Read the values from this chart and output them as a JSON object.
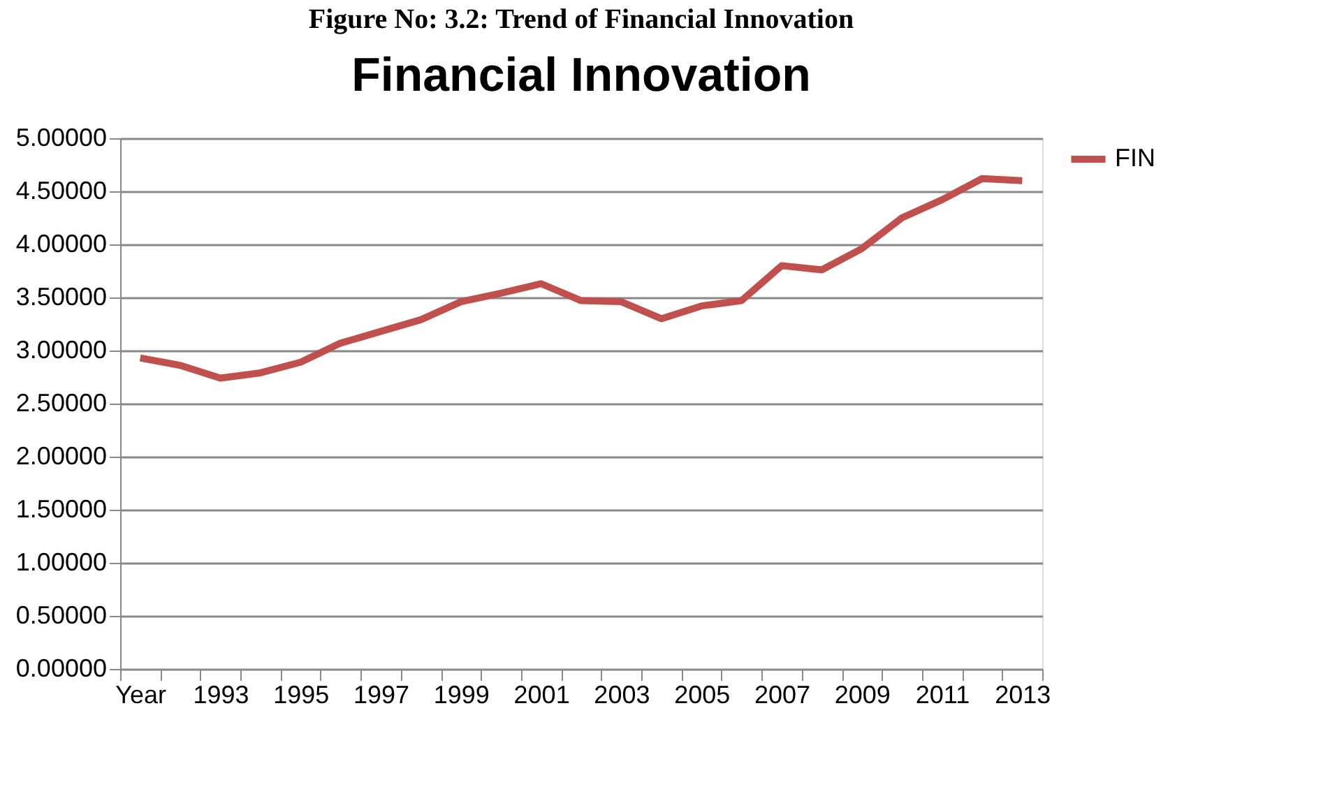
{
  "chart_data": {
    "type": "line",
    "title": "Financial Innovation",
    "annotations": [
      "Figure No: 3.2:  Trend of Financial Innovation"
    ],
    "categories": [
      "Year",
      null,
      "1993",
      null,
      "1995",
      null,
      "1997",
      null,
      "1999",
      null,
      "2001",
      null,
      "2003",
      null,
      "2005",
      null,
      "2007",
      null,
      "2009",
      null,
      "2011",
      null,
      "2013"
    ],
    "series": [
      {
        "name": "FIN",
        "color": "#c0504d",
        "values": [
          2.93,
          2.86,
          2.74,
          2.79,
          2.89,
          3.07,
          3.18,
          3.29,
          3.46,
          3.54,
          3.63,
          3.47,
          3.46,
          3.3,
          3.42,
          3.47,
          3.8,
          3.76,
          3.96,
          4.25,
          4.42,
          4.62,
          4.6
        ]
      }
    ],
    "ylim": [
      0,
      5
    ],
    "yticks": [
      {
        "value": 0,
        "label": "0.00000"
      },
      {
        "value": 0.5,
        "label": "0.50000"
      },
      {
        "value": 1,
        "label": "1.00000"
      },
      {
        "value": 1.5,
        "label": "1.50000"
      },
      {
        "value": 2,
        "label": "2.00000"
      },
      {
        "value": 2.5,
        "label": "2.50000"
      },
      {
        "value": 3,
        "label": "3.00000"
      },
      {
        "value": 3.5,
        "label": "3.50000"
      },
      {
        "value": 4,
        "label": "4.00000"
      },
      {
        "value": 4.5,
        "label": "4.50000"
      },
      {
        "value": 5,
        "label": "5.00000"
      }
    ],
    "grid": "y",
    "legend": "right",
    "marker": "none",
    "line_style": "solid"
  }
}
